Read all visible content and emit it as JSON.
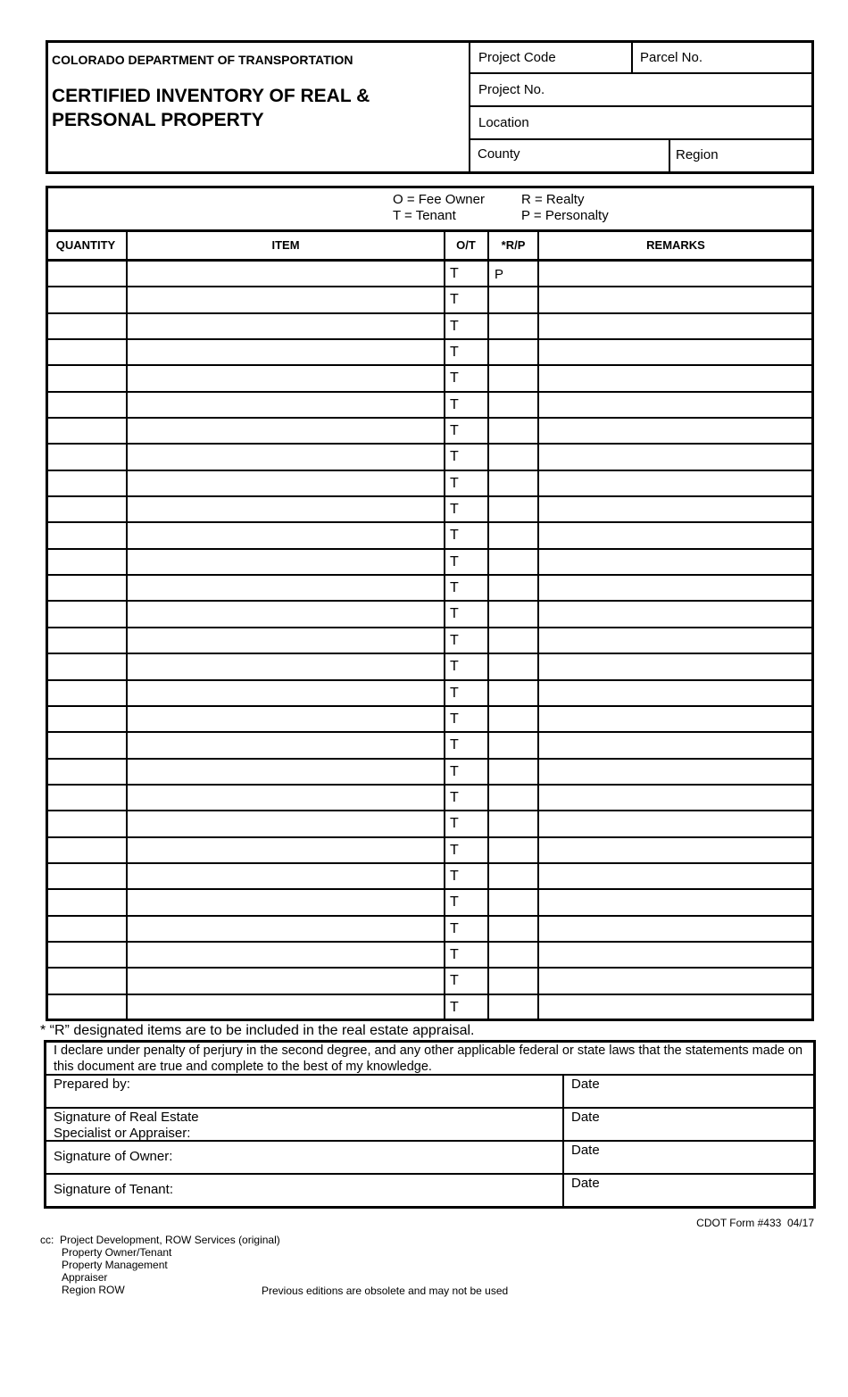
{
  "header": {
    "agency": "COLORADO DEPARTMENT OF TRANSPORTATION",
    "title": "CERTIFIED INVENTORY OF REAL & PERSONAL PROPERTY",
    "fields": {
      "project_code": "Project Code",
      "parcel_no": "Parcel No.",
      "project_no": "Project No.",
      "location": "Location",
      "county": "County",
      "region": "Region"
    }
  },
  "legend": {
    "fee_owner": "O = Fee Owner",
    "tenant": "T = Tenant",
    "realty": "R = Realty",
    "personalty": "P = Personalty"
  },
  "table": {
    "columns": [
      "QUANTITY",
      "ITEM",
      "O/T",
      "*R/P",
      "REMARKS"
    ],
    "rows": [
      {
        "ot": "T",
        "rp": "P"
      },
      {
        "ot": "T"
      },
      {
        "ot": "T"
      },
      {
        "ot": "T"
      },
      {
        "ot": "T"
      },
      {
        "ot": "T"
      },
      {
        "ot": "T"
      },
      {
        "ot": "T"
      },
      {
        "ot": "T"
      },
      {
        "ot": "T"
      },
      {
        "ot": "T"
      },
      {
        "ot": "T"
      },
      {
        "ot": "T"
      },
      {
        "ot": "T"
      },
      {
        "ot": "T"
      },
      {
        "ot": "T"
      },
      {
        "ot": "T"
      },
      {
        "ot": "T"
      },
      {
        "ot": "T"
      },
      {
        "ot": "T"
      },
      {
        "ot": "T"
      },
      {
        "ot": "T"
      },
      {
        "ot": "T"
      },
      {
        "ot": "T"
      },
      {
        "ot": "T"
      },
      {
        "ot": "T"
      },
      {
        "ot": "T"
      },
      {
        "ot": "T"
      },
      {
        "ot": "T"
      }
    ]
  },
  "footnote": "* “R” designated items are to be included in the real estate appraisal.",
  "declaration": "I declare under penalty of perjury in the second degree, and any other applicable federal or state laws that the statements made on this document are true and complete to the best of my knowledge.",
  "signatures": [
    {
      "label": "Prepared by:",
      "date": "Date"
    },
    {
      "label": "Signature of Real Estate Specialist or Appraiser:",
      "date": "Date"
    },
    {
      "label": "Signature of Owner:",
      "date": "Date"
    },
    {
      "label": "Signature of Tenant:",
      "date": "Date"
    }
  ],
  "form_number": "CDOT Form #433  04/17",
  "cc": {
    "prefix": "cc:",
    "recipients": [
      "Project Development, ROW Services (original)",
      "Property Owner/Tenant",
      "Property Management",
      "Appraiser",
      "Region ROW"
    ]
  },
  "obsolete_note": "Previous editions are obsolete and may not be used"
}
